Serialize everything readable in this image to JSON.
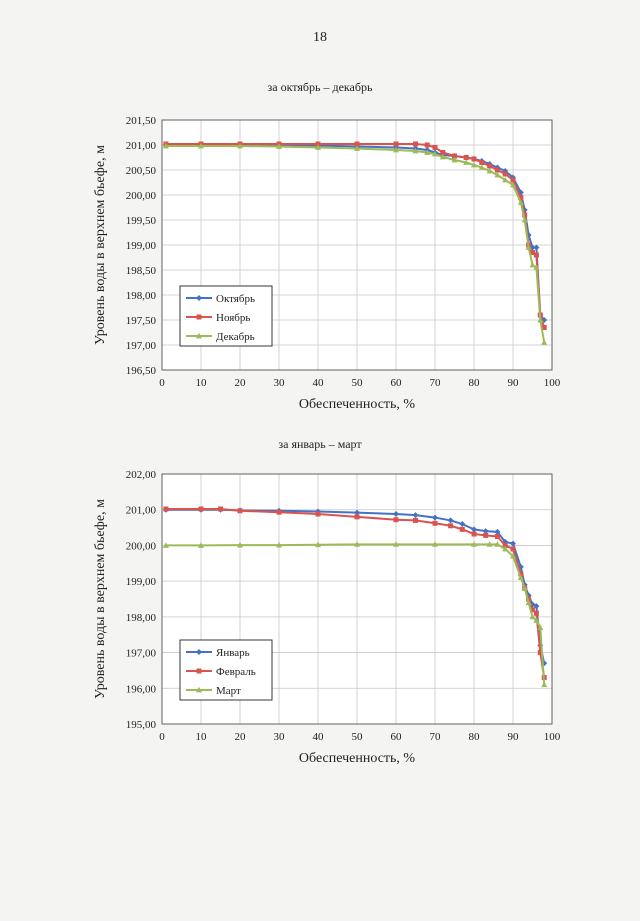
{
  "page": {
    "number": "18"
  },
  "chart_data": [
    {
      "type": "line",
      "title": "за октябрь – декабрь",
      "xlabel": "Обеспеченность, %",
      "ylabel": "Уровень воды в верхнем бьефе, м",
      "xlim": [
        0,
        100
      ],
      "ylim": [
        196.5,
        201.5
      ],
      "xticks": [
        "0",
        "10",
        "20",
        "30",
        "40",
        "50",
        "60",
        "70",
        "80",
        "90",
        "100"
      ],
      "yticks": [
        "196,50",
        "197,00",
        "197,50",
        "198,00",
        "198,50",
        "199,00",
        "199,50",
        "200,00",
        "200,50",
        "201,00",
        "201,50"
      ],
      "grid": true,
      "legend": "lower-left",
      "series": [
        {
          "name": "Октябрь",
          "color": "#4472c4",
          "marker": "diamond",
          "x": [
            1,
            10,
            20,
            30,
            40,
            50,
            60,
            65,
            68,
            70,
            72,
            75,
            78,
            80,
            82,
            84,
            86,
            88,
            90,
            92,
            93,
            94,
            95,
            96,
            97,
            98
          ],
          "y": [
            201.0,
            201.0,
            201.0,
            201.0,
            200.99,
            200.97,
            200.95,
            200.93,
            200.9,
            200.85,
            200.8,
            200.78,
            200.75,
            200.72,
            200.68,
            200.62,
            200.55,
            200.48,
            200.35,
            200.05,
            199.7,
            199.2,
            198.95,
            198.95,
            197.6,
            197.5
          ]
        },
        {
          "name": "Ноябрь",
          "color": "#d9534f",
          "marker": "square",
          "x": [
            1,
            10,
            20,
            30,
            40,
            50,
            60,
            65,
            68,
            70,
            72,
            75,
            78,
            80,
            82,
            84,
            86,
            88,
            90,
            92,
            93,
            94,
            95,
            96,
            97,
            98
          ],
          "y": [
            201.02,
            201.02,
            201.02,
            201.02,
            201.02,
            201.02,
            201.02,
            201.02,
            201.0,
            200.95,
            200.85,
            200.78,
            200.75,
            200.72,
            200.65,
            200.58,
            200.5,
            200.42,
            200.3,
            199.95,
            199.6,
            199.0,
            198.85,
            198.8,
            197.6,
            197.35
          ]
        },
        {
          "name": "Декабрь",
          "color": "#9bbb59",
          "marker": "triangle",
          "x": [
            1,
            10,
            20,
            30,
            40,
            50,
            60,
            65,
            68,
            70,
            72,
            75,
            78,
            80,
            82,
            84,
            86,
            88,
            90,
            92,
            93,
            94,
            95,
            96,
            97,
            98
          ],
          "y": [
            200.98,
            200.98,
            200.98,
            200.97,
            200.95,
            200.93,
            200.9,
            200.88,
            200.85,
            200.82,
            200.76,
            200.7,
            200.65,
            200.6,
            200.55,
            200.48,
            200.4,
            200.3,
            200.2,
            199.85,
            199.5,
            198.95,
            198.6,
            198.55,
            197.5,
            197.05
          ]
        }
      ]
    },
    {
      "type": "line",
      "title": "за январь – март",
      "xlabel": "Обеспеченность, %",
      "ylabel": "Уровень воды в верхнем бьефе, м",
      "xlim": [
        0,
        100
      ],
      "ylim": [
        195.0,
        202.0
      ],
      "xticks": [
        "0",
        "10",
        "20",
        "30",
        "40",
        "50",
        "60",
        "70",
        "80",
        "90",
        "100"
      ],
      "yticks": [
        "195,00",
        "196,00",
        "197,00",
        "198,00",
        "199,00",
        "200,00",
        "201,00",
        "202,00"
      ],
      "grid": true,
      "legend": "lower-left",
      "series": [
        {
          "name": "Январь",
          "color": "#4472c4",
          "marker": "diamond",
          "x": [
            1,
            10,
            15,
            20,
            30,
            40,
            50,
            60,
            65,
            70,
            74,
            77,
            80,
            83,
            86,
            88,
            90,
            92,
            93,
            94,
            95,
            96,
            97,
            98
          ],
          "y": [
            201.0,
            201.0,
            201.0,
            200.98,
            200.97,
            200.95,
            200.92,
            200.88,
            200.85,
            200.78,
            200.7,
            200.6,
            200.45,
            200.4,
            200.38,
            200.1,
            200.05,
            199.4,
            198.9,
            198.6,
            198.35,
            198.3,
            197.2,
            196.7
          ]
        },
        {
          "name": "Февраль",
          "color": "#d9534f",
          "marker": "square",
          "x": [
            1,
            10,
            15,
            20,
            30,
            40,
            50,
            60,
            65,
            70,
            74,
            77,
            80,
            83,
            86,
            88,
            90,
            92,
            93,
            94,
            95,
            96,
            97,
            98
          ],
          "y": [
            201.02,
            201.02,
            201.02,
            200.97,
            200.93,
            200.88,
            200.8,
            200.72,
            200.7,
            200.62,
            200.55,
            200.45,
            200.32,
            200.28,
            200.25,
            200.0,
            199.9,
            199.2,
            198.8,
            198.5,
            198.2,
            198.1,
            197.0,
            196.3
          ]
        },
        {
          "name": "Март",
          "color": "#9bbb59",
          "marker": "triangle",
          "x": [
            1,
            10,
            20,
            30,
            40,
            50,
            60,
            70,
            80,
            84,
            86,
            88,
            90,
            92,
            93,
            94,
            95,
            96,
            97,
            98
          ],
          "y": [
            200.0,
            200.0,
            200.01,
            200.01,
            200.02,
            200.03,
            200.03,
            200.03,
            200.03,
            200.03,
            200.03,
            199.9,
            199.7,
            199.1,
            198.8,
            198.4,
            198.0,
            197.9,
            197.7,
            196.1
          ]
        }
      ]
    }
  ]
}
